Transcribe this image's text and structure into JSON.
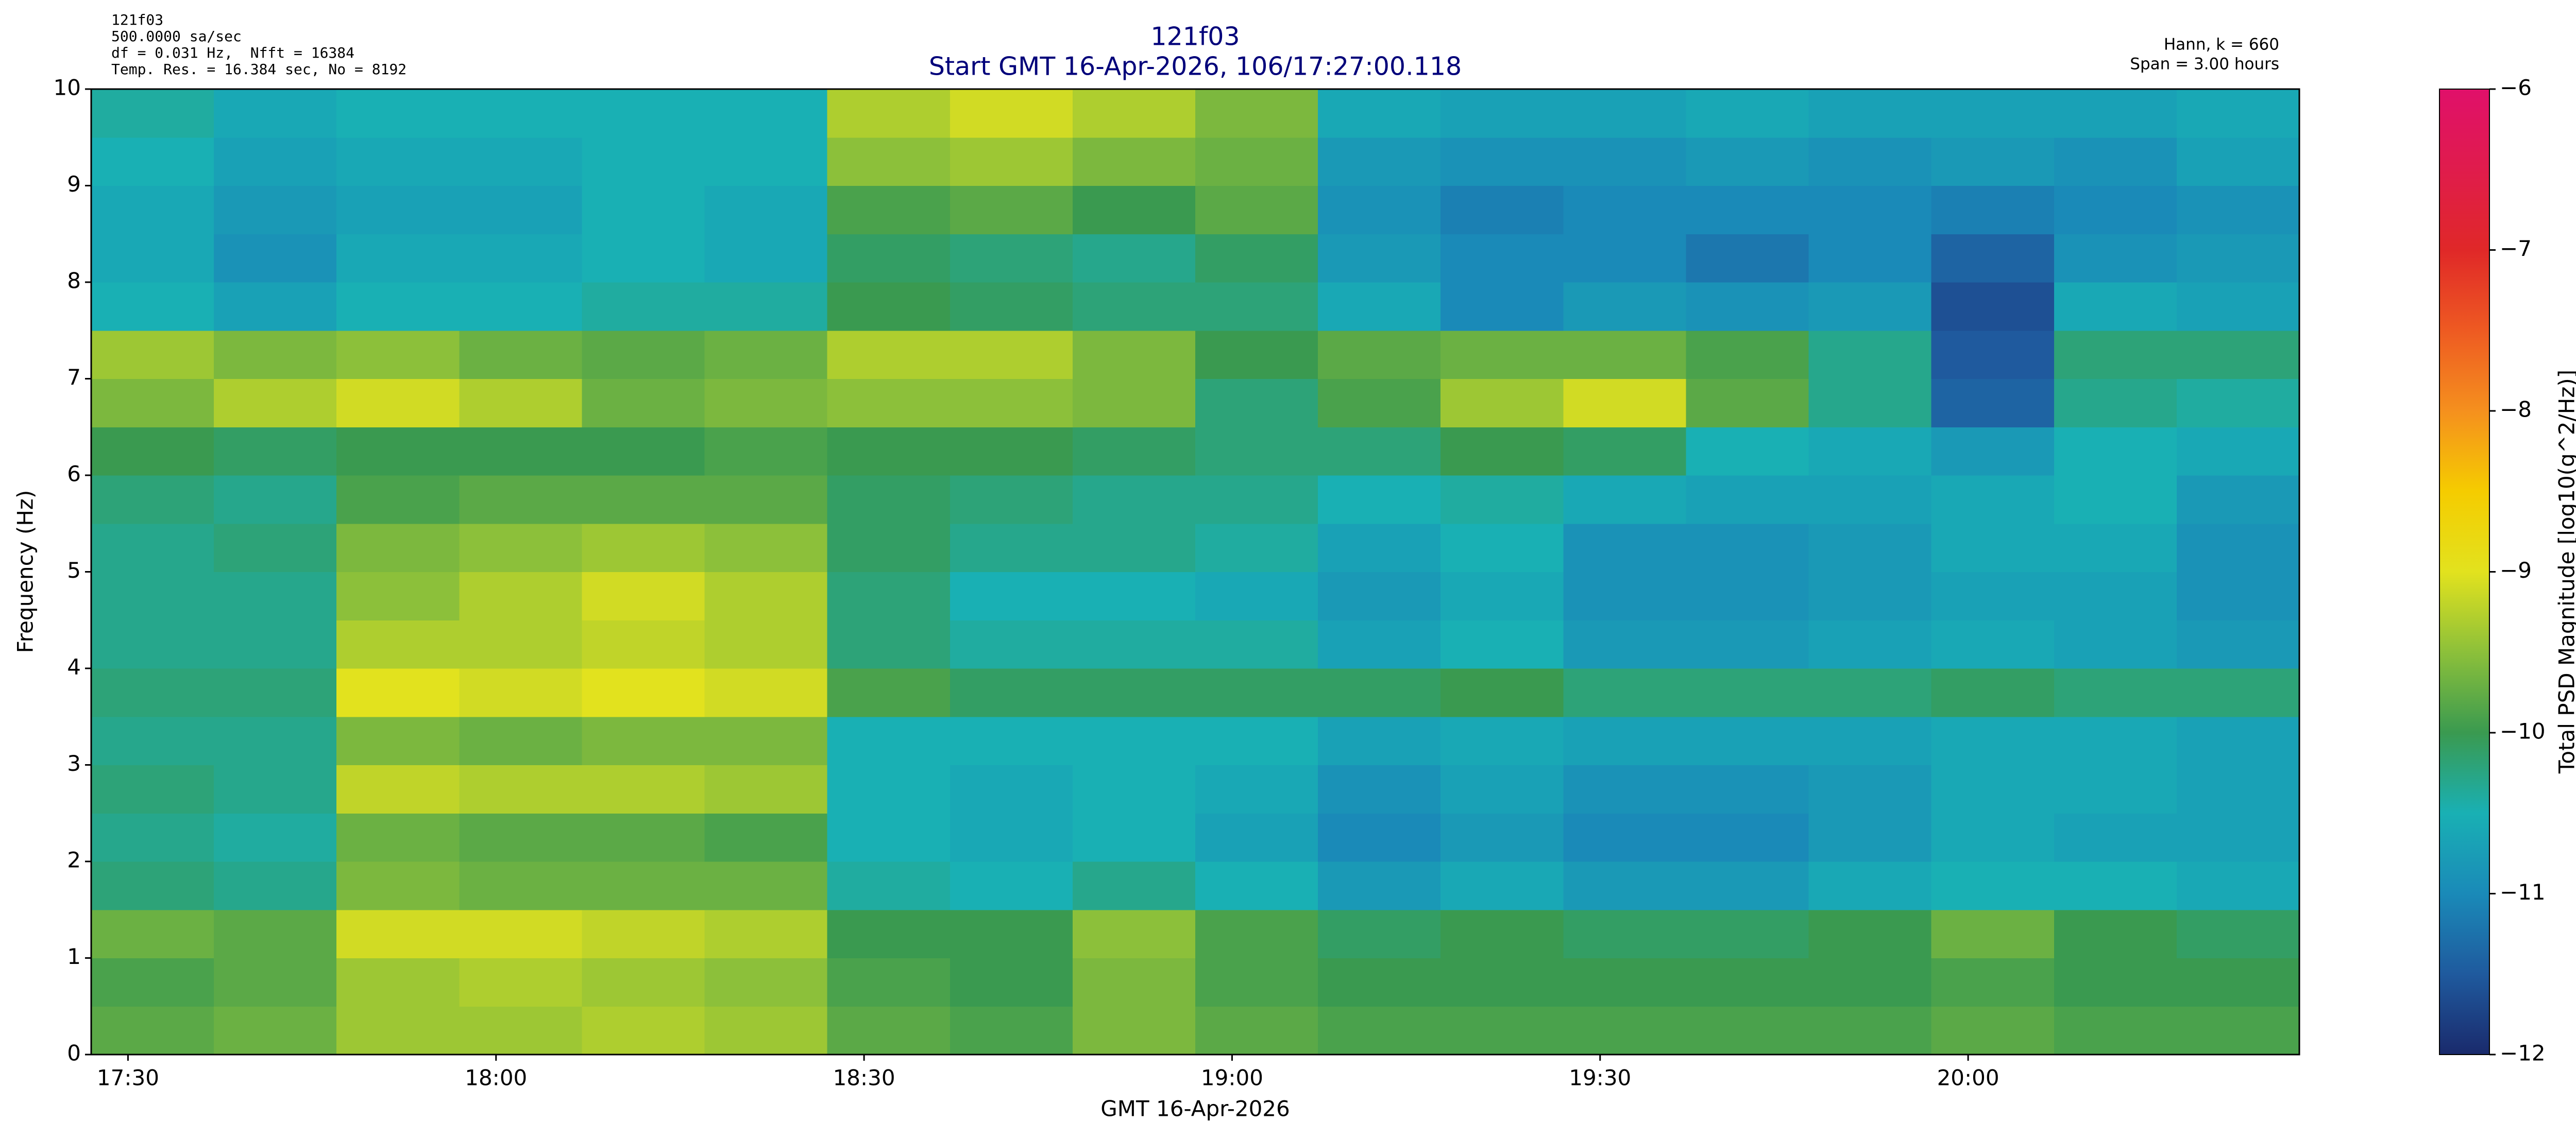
{
  "chart_data": {
    "type": "heatmap",
    "info_left": [
      "121f03",
      "500.0000 sa/sec",
      "df = 0.031 Hz,  Nfft = 16384",
      "Temp. Res. = 16.384 sec, No = 8192"
    ],
    "info_right": [
      "Hann, k = 660",
      "Span = 3.00 hours"
    ],
    "title": "121f03",
    "subtitle": "Start GMT 16-Apr-2026, 106/17:27:00.118",
    "xlabel": "GMT 16-Apr-2026",
    "ylabel": "Frequency (Hz)",
    "zlabel": "Total PSD Magnitude [log10(g^2/Hz)]",
    "xlim": [
      1047,
      1227
    ],
    "xticks": [
      {
        "value": 1050,
        "label": "17:30"
      },
      {
        "value": 1080,
        "label": "18:00"
      },
      {
        "value": 1110,
        "label": "18:30"
      },
      {
        "value": 1140,
        "label": "19:00"
      },
      {
        "value": 1170,
        "label": "19:30"
      },
      {
        "value": 1200,
        "label": "20:00"
      }
    ],
    "ylim": [
      0,
      10
    ],
    "yticks": [
      0,
      1,
      2,
      3,
      4,
      5,
      6,
      7,
      8,
      9,
      10
    ],
    "zlim": [
      -12,
      -6
    ],
    "zticks": [
      {
        "value": -12,
        "label": "−12"
      },
      {
        "value": -11,
        "label": "−11"
      },
      {
        "value": -10,
        "label": "−10"
      },
      {
        "value": -9,
        "label": "−9"
      },
      {
        "value": -8,
        "label": "−8"
      },
      {
        "value": -7,
        "label": "−7"
      },
      {
        "value": -6,
        "label": "−6"
      }
    ],
    "colorscale": [
      "#1a2a6c",
      "#1f5a9e",
      "#1a8ab8",
      "#19b0b4",
      "#3a9a50",
      "#8cc03a",
      "#e2e21e",
      "#f5cc00",
      "#f5901e",
      "#ee5a22",
      "#e02828",
      "#e01c4c",
      "#e0106a"
    ],
    "x": [
      1052,
      1062,
      1072,
      1082,
      1092,
      1102,
      1112,
      1122,
      1132,
      1142,
      1152,
      1162,
      1172,
      1182,
      1192,
      1202,
      1212,
      1222
    ],
    "y": [
      0.25,
      0.75,
      1.25,
      1.75,
      2.25,
      2.75,
      3.25,
      3.75,
      4.25,
      4.75,
      5.25,
      5.75,
      6.25,
      6.75,
      7.25,
      7.75,
      8.25,
      8.75,
      9.25,
      9.75
    ],
    "z": [
      [
        -9.8,
        -9.7,
        -9.4,
        -9.4,
        -9.3,
        -9.4,
        -9.8,
        -9.9,
        -9.6,
        -9.8,
        -9.9,
        -9.9,
        -9.9,
        -9.9,
        -9.9,
        -9.8,
        -9.9,
        -9.9
      ],
      [
        -9.9,
        -9.8,
        -9.4,
        -9.3,
        -9.4,
        -9.5,
        -9.9,
        -10.0,
        -9.6,
        -9.9,
        -10.0,
        -10.0,
        -10.0,
        -10.0,
        -10.0,
        -9.9,
        -10.0,
        -10.0
      ],
      [
        -9.7,
        -9.8,
        -9.1,
        -9.1,
        -9.2,
        -9.3,
        -10.0,
        -10.0,
        -9.5,
        -9.9,
        -10.1,
        -10.0,
        -10.1,
        -10.1,
        -10.0,
        -9.7,
        -10.0,
        -10.1
      ],
      [
        -10.2,
        -10.3,
        -9.6,
        -9.7,
        -9.7,
        -9.7,
        -10.4,
        -10.5,
        -10.3,
        -10.5,
        -10.8,
        -10.6,
        -10.8,
        -10.8,
        -10.6,
        -10.5,
        -10.5,
        -10.6
      ],
      [
        -10.3,
        -10.4,
        -9.7,
        -9.8,
        -9.8,
        -9.9,
        -10.5,
        -10.6,
        -10.5,
        -10.7,
        -11.0,
        -10.8,
        -11.0,
        -11.0,
        -10.8,
        -10.6,
        -10.7,
        -10.7
      ],
      [
        -10.2,
        -10.3,
        -9.2,
        -9.3,
        -9.3,
        -9.4,
        -10.5,
        -10.6,
        -10.5,
        -10.6,
        -10.9,
        -10.7,
        -10.9,
        -10.9,
        -10.8,
        -10.6,
        -10.6,
        -10.7
      ],
      [
        -10.3,
        -10.3,
        -9.6,
        -9.7,
        -9.6,
        -9.6,
        -10.5,
        -10.5,
        -10.5,
        -10.5,
        -10.7,
        -10.6,
        -10.7,
        -10.7,
        -10.7,
        -10.6,
        -10.6,
        -10.7
      ],
      [
        -10.2,
        -10.2,
        -9.0,
        -9.1,
        -9.0,
        -9.1,
        -9.9,
        -10.1,
        -10.1,
        -10.1,
        -10.1,
        -10.0,
        -10.2,
        -10.2,
        -10.2,
        -10.1,
        -10.2,
        -10.2
      ],
      [
        -10.3,
        -10.3,
        -9.3,
        -9.3,
        -9.2,
        -9.3,
        -10.2,
        -10.4,
        -10.4,
        -10.4,
        -10.7,
        -10.5,
        -10.8,
        -10.8,
        -10.7,
        -10.6,
        -10.7,
        -10.8
      ],
      [
        -10.3,
        -10.3,
        -9.5,
        -9.3,
        -9.1,
        -9.3,
        -10.2,
        -10.5,
        -10.5,
        -10.6,
        -10.8,
        -10.6,
        -10.9,
        -10.9,
        -10.8,
        -10.7,
        -10.7,
        -10.9
      ],
      [
        -10.3,
        -10.2,
        -9.6,
        -9.5,
        -9.4,
        -9.5,
        -10.1,
        -10.3,
        -10.3,
        -10.4,
        -10.7,
        -10.5,
        -10.9,
        -10.9,
        -10.8,
        -10.6,
        -10.6,
        -10.9
      ],
      [
        -10.2,
        -10.3,
        -9.9,
        -9.8,
        -9.8,
        -9.8,
        -10.1,
        -10.2,
        -10.3,
        -10.3,
        -10.5,
        -10.4,
        -10.6,
        -10.7,
        -10.7,
        -10.6,
        -10.5,
        -10.8
      ],
      [
        -10.0,
        -10.1,
        -10.0,
        -10.0,
        -10.0,
        -9.9,
        -10.0,
        -10.0,
        -10.1,
        -10.2,
        -10.2,
        -10.0,
        -10.1,
        -10.5,
        -10.6,
        -10.8,
        -10.5,
        -10.6
      ],
      [
        -9.6,
        -9.3,
        -9.1,
        -9.3,
        -9.7,
        -9.6,
        -9.5,
        -9.5,
        -9.6,
        -10.2,
        -9.9,
        -9.4,
        -9.1,
        -9.8,
        -10.3,
        -11.4,
        -10.3,
        -10.4
      ],
      [
        -9.4,
        -9.6,
        -9.5,
        -9.7,
        -9.8,
        -9.7,
        -9.3,
        -9.3,
        -9.6,
        -10.0,
        -9.8,
        -9.7,
        -9.7,
        -9.9,
        -10.3,
        -11.5,
        -10.2,
        -10.2
      ],
      [
        -10.5,
        -10.7,
        -10.5,
        -10.5,
        -10.4,
        -10.4,
        -10.0,
        -10.1,
        -10.2,
        -10.2,
        -10.6,
        -11.0,
        -10.8,
        -10.9,
        -10.8,
        -11.6,
        -10.6,
        -10.7
      ],
      [
        -10.6,
        -10.9,
        -10.6,
        -10.6,
        -10.5,
        -10.6,
        -10.1,
        -10.2,
        -10.3,
        -10.1,
        -10.8,
        -11.0,
        -11.0,
        -11.2,
        -11.0,
        -11.4,
        -10.9,
        -10.8
      ],
      [
        -10.6,
        -10.8,
        -10.7,
        -10.7,
        -10.5,
        -10.6,
        -9.9,
        -9.8,
        -10.0,
        -9.8,
        -10.9,
        -11.1,
        -11.0,
        -11.0,
        -11.0,
        -11.1,
        -11.0,
        -10.9
      ],
      [
        -10.5,
        -10.7,
        -10.6,
        -10.6,
        -10.5,
        -10.5,
        -9.5,
        -9.4,
        -9.6,
        -9.7,
        -10.8,
        -10.9,
        -10.9,
        -10.8,
        -10.9,
        -10.8,
        -10.9,
        -10.7
      ],
      [
        -10.4,
        -10.6,
        -10.5,
        -10.5,
        -10.5,
        -10.5,
        -9.3,
        -9.1,
        -9.3,
        -9.6,
        -10.6,
        -10.7,
        -10.7,
        -10.6,
        -10.7,
        -10.7,
        -10.7,
        -10.6
      ]
    ]
  }
}
